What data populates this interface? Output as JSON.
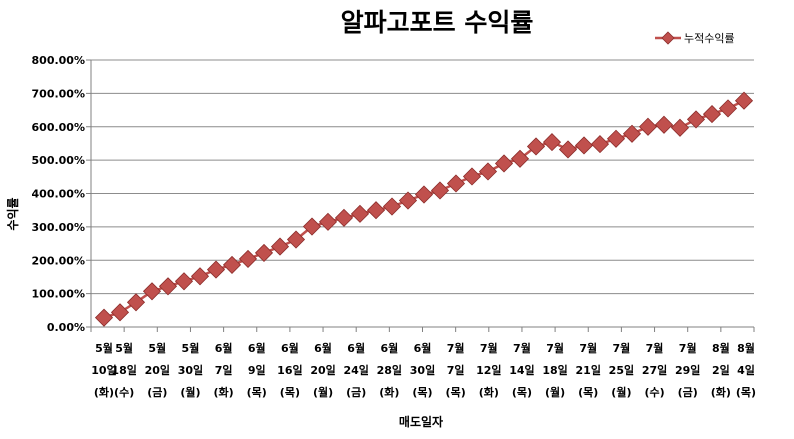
{
  "chart_data": {
    "type": "line",
    "title": "알파고포트 수익률",
    "xlabel": "매도일자",
    "ylabel": "수익률",
    "ylim": [
      0,
      800
    ],
    "yticks": [
      "0.00%",
      "100.00%",
      "200.00%",
      "300.00%",
      "400.00%",
      "500.00%",
      "600.00%",
      "700.00%",
      "800.00%"
    ],
    "grid": true,
    "legend_position": "top-right",
    "colors": {
      "line": "#c0504d",
      "marker": "#c0504d",
      "marker_edge": "#8c2d2b",
      "grid": "#8c8c8c"
    },
    "x_tick_labels": [
      [
        "5월",
        "10일",
        "(화)"
      ],
      [
        "5월",
        "18일",
        "(수)"
      ],
      [
        "5월",
        "20일",
        "(금)"
      ],
      [
        "5월",
        "30일",
        "(월)"
      ],
      [
        "6월",
        "7일",
        "(화)"
      ],
      [
        "6월",
        "9일",
        "(목)"
      ],
      [
        "6월",
        "16일",
        "(목)"
      ],
      [
        "6월",
        "20일",
        "(월)"
      ],
      [
        "6월",
        "24일",
        "(금)"
      ],
      [
        "6월",
        "28일",
        "(화)"
      ],
      [
        "6월",
        "30일",
        "(목)"
      ],
      [
        "7월",
        "7일",
        "(목)"
      ],
      [
        "7월",
        "12일",
        "(화)"
      ],
      [
        "7월",
        "14일",
        "(목)"
      ],
      [
        "7월",
        "18일",
        "(월)"
      ],
      [
        "7월",
        "21일",
        "(목)"
      ],
      [
        "7월",
        "25일",
        "(월)"
      ],
      [
        "7월",
        "27일",
        "(수)"
      ],
      [
        "7월",
        "29일",
        "(금)"
      ],
      [
        "8월",
        "2일",
        "(화)"
      ],
      [
        "8월",
        "4일",
        "(목)"
      ]
    ],
    "series": [
      {
        "name": "누적수익률",
        "values": [
          28,
          44,
          74,
          107,
          122,
          137,
          152,
          172,
          186,
          204,
          222,
          241,
          262,
          301,
          315,
          327,
          339,
          350,
          361,
          379,
          397,
          409,
          430,
          451,
          466,
          490,
          504,
          541,
          554,
          532,
          544,
          548,
          564,
          579,
          600,
          606,
          597,
          622,
          638,
          655,
          678
        ]
      }
    ]
  }
}
